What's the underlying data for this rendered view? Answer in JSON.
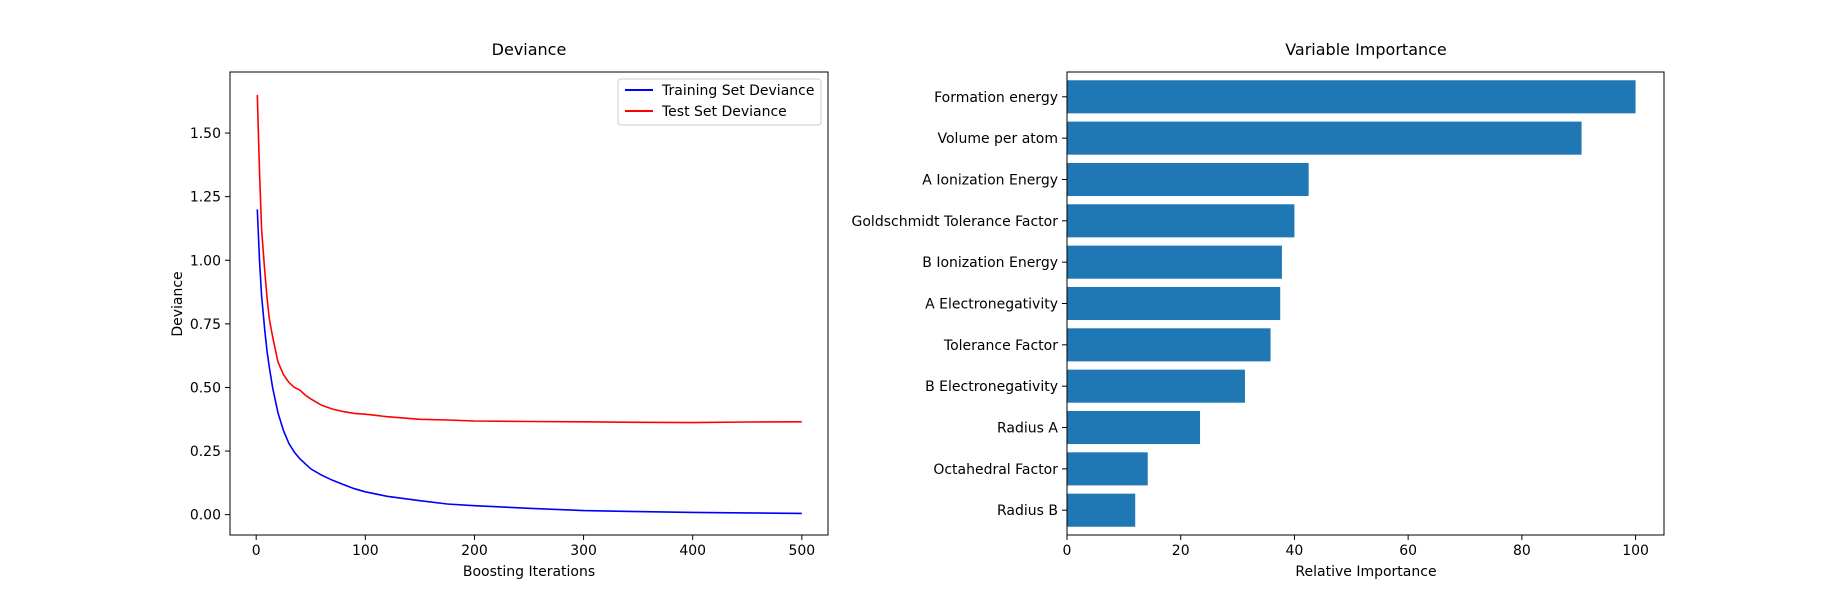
{
  "chart_data": [
    {
      "type": "line",
      "title": "Deviance",
      "xlabel": "Boosting Iterations",
      "ylabel": "Deviance",
      "xlim": [
        -24,
        524
      ],
      "ylim": [
        -0.08,
        1.74
      ],
      "xticks": [
        0,
        100,
        200,
        300,
        400,
        500
      ],
      "yticks": [
        0.0,
        0.25,
        0.5,
        0.75,
        1.0,
        1.25,
        1.5
      ],
      "xtick_labels": [
        "0",
        "100",
        "200",
        "300",
        "400",
        "500"
      ],
      "ytick_labels": [
        "0.00",
        "0.25",
        "0.50",
        "0.75",
        "1.00",
        "1.25",
        "1.50"
      ],
      "legend": "top-right",
      "grid": false,
      "series": [
        {
          "name": "Training Set Deviance",
          "color": "#0000ff",
          "x": [
            1,
            3,
            5,
            8,
            10,
            12,
            15,
            18,
            20,
            25,
            30,
            35,
            40,
            45,
            50,
            60,
            70,
            80,
            90,
            100,
            120,
            150,
            175,
            200,
            250,
            300,
            350,
            400,
            450,
            500
          ],
          "y": [
            1.2,
            1.0,
            0.86,
            0.72,
            0.64,
            0.58,
            0.5,
            0.44,
            0.4,
            0.33,
            0.28,
            0.245,
            0.22,
            0.2,
            0.18,
            0.155,
            0.135,
            0.118,
            0.102,
            0.09,
            0.072,
            0.055,
            0.042,
            0.035,
            0.025,
            0.016,
            0.012,
            0.009,
            0.007,
            0.005
          ]
        },
        {
          "name": "Test Set Deviance",
          "color": "#ff0000",
          "x": [
            1,
            3,
            5,
            8,
            10,
            12,
            15,
            18,
            20,
            25,
            30,
            35,
            40,
            45,
            50,
            60,
            70,
            80,
            90,
            100,
            120,
            150,
            175,
            200,
            250,
            300,
            350,
            400,
            450,
            500
          ],
          "y": [
            1.65,
            1.35,
            1.12,
            0.95,
            0.85,
            0.77,
            0.7,
            0.64,
            0.6,
            0.55,
            0.52,
            0.5,
            0.49,
            0.47,
            0.455,
            0.43,
            0.415,
            0.405,
            0.398,
            0.395,
            0.385,
            0.375,
            0.372,
            0.368,
            0.366,
            0.365,
            0.363,
            0.362,
            0.364,
            0.365
          ]
        }
      ]
    },
    {
      "type": "bar",
      "orientation": "horizontal",
      "title": "Variable Importance",
      "xlabel": "Relative Importance",
      "ylabel": "",
      "xlim": [
        0,
        105
      ],
      "xticks": [
        0,
        20,
        40,
        60,
        80,
        100
      ],
      "xtick_labels": [
        "0",
        "20",
        "40",
        "60",
        "80",
        "100"
      ],
      "grid": false,
      "bar_color": "#1f77b4",
      "categories": [
        "Formation energy",
        "Volume per atom",
        "A Ionization Energy",
        "Goldschmidt Tolerance Factor",
        "B Ionization Energy",
        "A Electronegativity",
        "Tolerance Factor",
        "B Electronegativity",
        "Radius A",
        "Octahedral Factor",
        "Radius B"
      ],
      "values": [
        100,
        90.5,
        42.5,
        40,
        37.8,
        37.5,
        35.8,
        31.3,
        23.4,
        14.2,
        12
      ]
    }
  ]
}
